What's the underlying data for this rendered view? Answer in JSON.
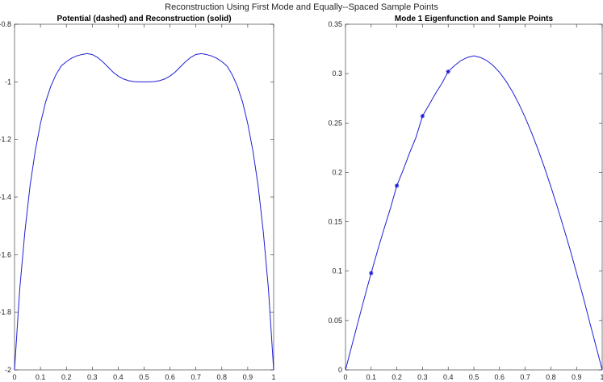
{
  "figure": {
    "title": "Reconstruction Using First Mode and Equally--Spaced Sample Points"
  },
  "chart_data": [
    {
      "type": "line",
      "title": "Potential (dashed) and Reconstruction (solid)",
      "xlim": [
        0,
        1
      ],
      "ylim": [
        -2,
        -0.8
      ],
      "xticks": [
        0,
        0.1,
        0.2,
        0.3,
        0.4,
        0.5,
        0.6,
        0.7,
        0.8,
        0.9,
        1
      ],
      "xtick_labels": [
        "0",
        "0.1",
        "0.2",
        "0.3",
        "0.4",
        "0.5",
        "0.6",
        "0.7",
        "0.8",
        "0.9",
        "1"
      ],
      "yticks": [
        -2,
        -1.8,
        -1.6,
        -1.4,
        -1.2,
        -1,
        -0.8
      ],
      "ytick_labels": [
        "-2",
        "-1.8",
        "-1.6",
        "-1.4",
        "-1.2",
        "-1",
        "-0.8"
      ],
      "grid": false,
      "series": [
        {
          "line_style": "solid",
          "color": "#1f1fd6",
          "x": [
            0,
            0.02,
            0.04,
            0.06,
            0.08,
            0.1,
            0.12,
            0.14,
            0.16,
            0.18,
            0.2,
            0.22,
            0.24,
            0.26,
            0.28,
            0.3,
            0.32,
            0.34,
            0.36,
            0.38,
            0.4,
            0.42,
            0.44,
            0.46,
            0.48,
            0.5,
            0.52,
            0.54,
            0.56,
            0.58,
            0.6,
            0.62,
            0.64,
            0.66,
            0.68,
            0.7,
            0.72,
            0.74,
            0.76,
            0.78,
            0.8,
            0.82,
            0.84,
            0.86,
            0.88,
            0.9,
            0.92,
            0.94,
            0.96,
            0.98,
            1
          ],
          "y": [
            -2,
            -1.72,
            -1.52,
            -1.36,
            -1.24,
            -1.145,
            -1.07,
            -1.015,
            -0.975,
            -0.945,
            -0.93,
            -0.918,
            -0.91,
            -0.905,
            -0.902,
            -0.905,
            -0.915,
            -0.93,
            -0.948,
            -0.966,
            -0.98,
            -0.99,
            -0.996,
            -0.999,
            -1.0,
            -1.0,
            -1.0,
            -0.999,
            -0.996,
            -0.99,
            -0.98,
            -0.966,
            -0.948,
            -0.93,
            -0.915,
            -0.905,
            -0.902,
            -0.905,
            -0.91,
            -0.918,
            -0.93,
            -0.945,
            -0.975,
            -1.015,
            -1.07,
            -1.145,
            -1.24,
            -1.36,
            -1.52,
            -1.72,
            -2
          ]
        }
      ]
    },
    {
      "type": "line",
      "title": "Mode 1 Eigenfunction and Sample Points",
      "xlim": [
        0,
        1
      ],
      "ylim": [
        0,
        0.35
      ],
      "xticks": [
        0,
        0.1,
        0.2,
        0.3,
        0.4,
        0.5,
        0.6,
        0.7,
        0.8,
        0.9,
        1
      ],
      "xtick_labels": [
        "0",
        "0.1",
        "0.2",
        "0.3",
        "0.4",
        "0.5",
        "0.6",
        "0.7",
        "0.8",
        "0.9",
        "1"
      ],
      "yticks": [
        0,
        0.05,
        0.1,
        0.15,
        0.2,
        0.25,
        0.3,
        0.35
      ],
      "ytick_labels": [
        "0",
        "0.05",
        "0.1",
        "0.15",
        "0.2",
        "0.25",
        "0.3",
        "0.35"
      ],
      "grid": false,
      "series": [
        {
          "line_style": "solid",
          "color": "#1f1fd6",
          "x": [
            0,
            0.025,
            0.05,
            0.075,
            0.1,
            0.125,
            0.15,
            0.175,
            0.2,
            0.225,
            0.25,
            0.275,
            0.3,
            0.325,
            0.35,
            0.375,
            0.4,
            0.425,
            0.45,
            0.475,
            0.5,
            0.525,
            0.55,
            0.575,
            0.6,
            0.625,
            0.65,
            0.675,
            0.7,
            0.725,
            0.75,
            0.775,
            0.8,
            0.825,
            0.85,
            0.875,
            0.9,
            0.925,
            0.95,
            0.975,
            1
          ],
          "y": [
            0,
            0.0248,
            0.0496,
            0.0742,
            0.098,
            0.1208,
            0.1427,
            0.1636,
            0.1865,
            0.2027,
            0.2199,
            0.2357,
            0.257,
            0.2681,
            0.2796,
            0.2899,
            0.302,
            0.3082,
            0.3133,
            0.3164,
            0.318,
            0.3164,
            0.3133,
            0.3082,
            0.3013,
            0.2925,
            0.2819,
            0.2696,
            0.2556,
            0.2401,
            0.2232,
            0.205,
            0.1856,
            0.1652,
            0.1438,
            0.1217,
            0.0983,
            0.0748,
            0.0496,
            0.0248,
            0
          ]
        },
        {
          "marker": "asterisk",
          "color": "#1f1fd6",
          "x": [
            0.1,
            0.2,
            0.3,
            0.4
          ],
          "y": [
            0.098,
            0.1865,
            0.257,
            0.302
          ]
        }
      ]
    }
  ]
}
